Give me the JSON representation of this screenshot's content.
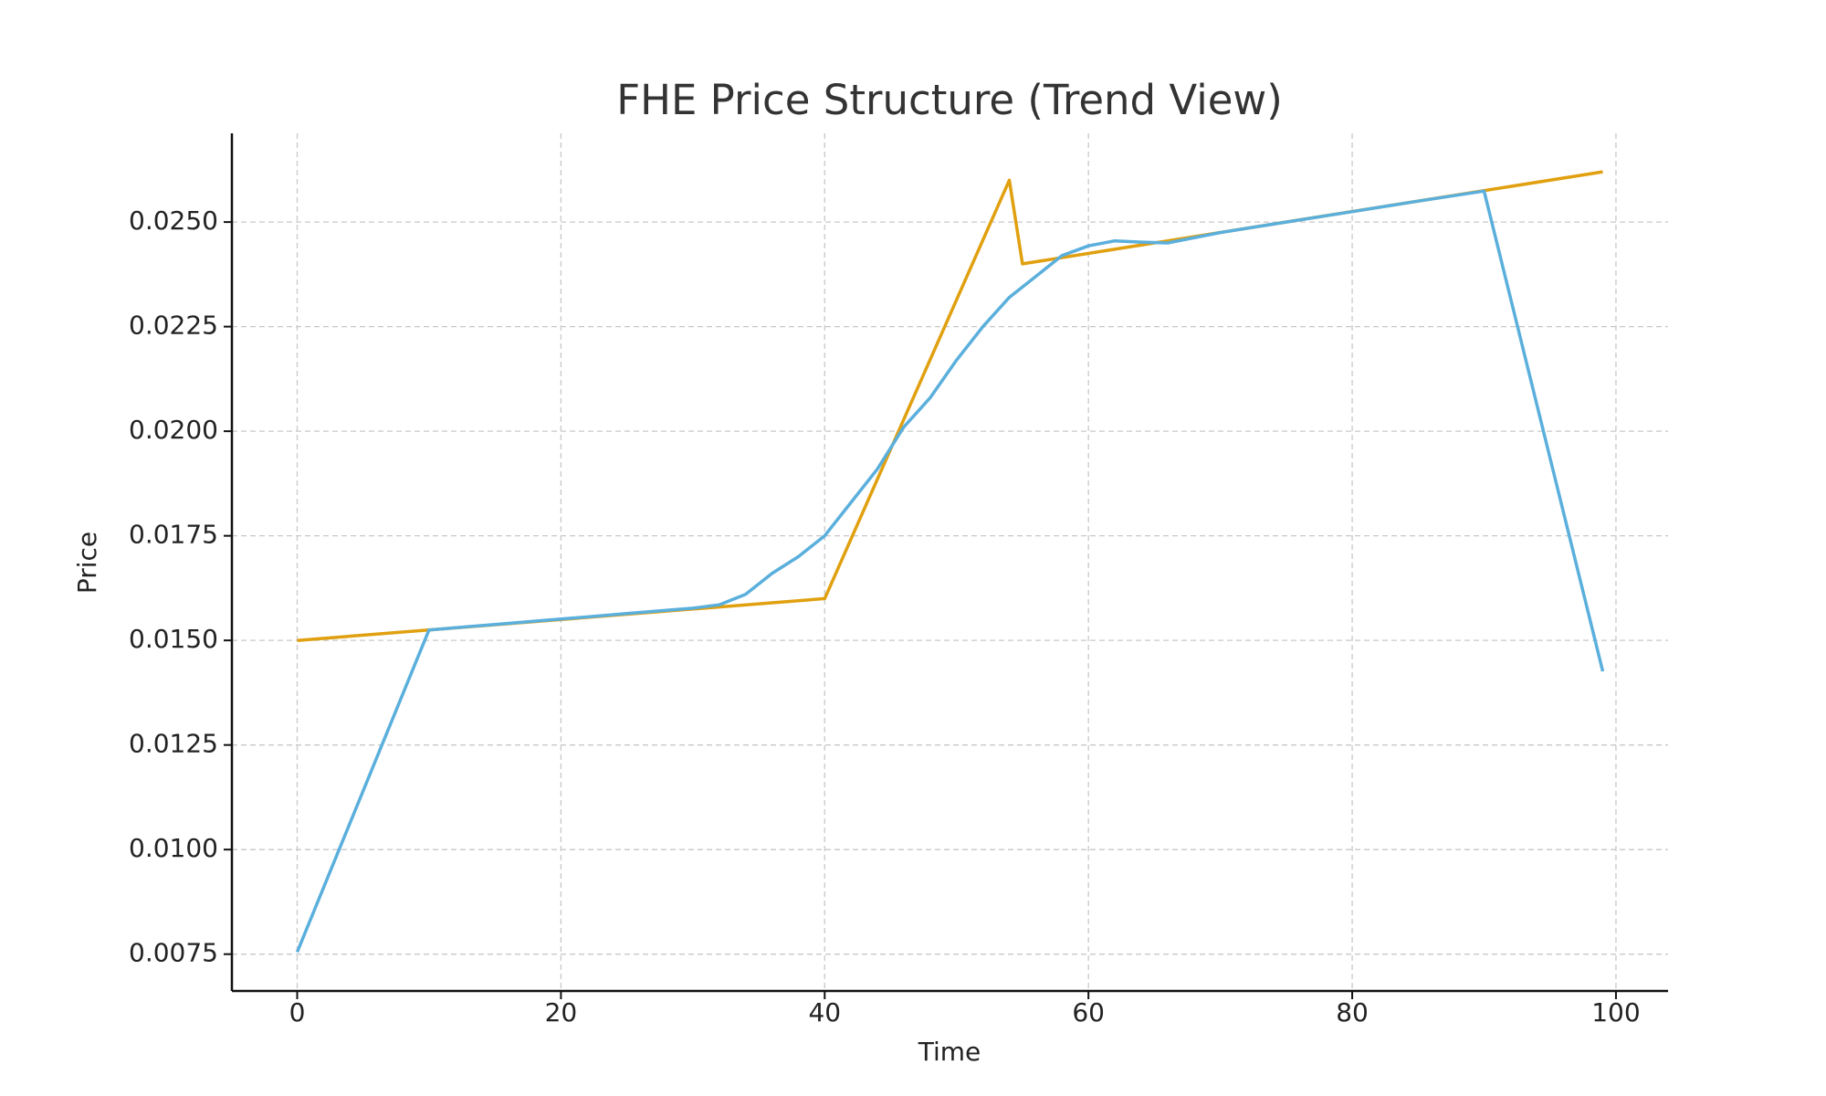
{
  "chart_data": {
    "type": "line",
    "title": "FHE Price Structure (Trend View)",
    "x_label": "Time",
    "y_label": "Price",
    "series": [
      {
        "color": "#e0a00f",
        "x": [
          0,
          40,
          54,
          55,
          99
        ],
        "values": [
          0.015,
          0.016,
          0.026,
          0.024,
          0.0262
        ]
      },
      {
        "color": "#5aafdc",
        "x": [
          0,
          10,
          15,
          20,
          25,
          30,
          32,
          34,
          36,
          38,
          40,
          42,
          44,
          46,
          48,
          50,
          52,
          54,
          56,
          58,
          60,
          62,
          64,
          66,
          70,
          75,
          80,
          85,
          90,
          99
        ],
        "values": [
          0.00755,
          0.01525,
          0.01538,
          0.01551,
          0.01564,
          0.01577,
          0.01585,
          0.0161,
          0.0166,
          0.017,
          0.0175,
          0.0183,
          0.0191,
          0.0201,
          0.0208,
          0.0217,
          0.0225,
          0.0232,
          0.0237,
          0.0242,
          0.02443,
          0.02455,
          0.02452,
          0.0245,
          0.02475,
          0.025,
          0.02525,
          0.0255,
          0.02574,
          0.01426
        ]
      }
    ],
    "xlim": [
      -4.95,
      103.95
    ],
    "xticks": [
      0,
      20,
      40,
      60,
      80,
      100
    ],
    "ylim": [
      0.00662,
      0.02712
    ],
    "yticks": [
      0.0075,
      {
        "value": 0.01,
        "label": "0.0100"
      },
      0.0125,
      {
        "value": 0.015,
        "label": "0.0150"
      },
      0.0175,
      {
        "value": 0.02,
        "label": "0.0200"
      },
      0.0225,
      {
        "value": 0.025,
        "label": "0.0250"
      }
    ],
    "grid": true
  }
}
